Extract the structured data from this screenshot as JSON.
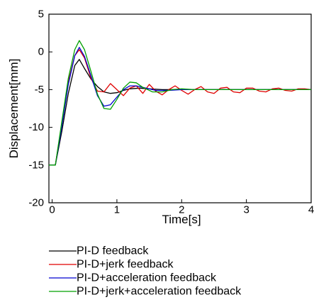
{
  "chart_data": {
    "type": "line",
    "title": "",
    "xlabel": "Time[s]",
    "ylabel": "Displacement[mm]",
    "xlim": [
      -0.05,
      4
    ],
    "ylim": [
      -20,
      5
    ],
    "xticks": [
      0,
      1,
      2,
      3,
      4
    ],
    "xtick_labels": [
      "0",
      "1",
      "2",
      "3",
      "4"
    ],
    "yticks": [
      -20,
      -15,
      -10,
      -5,
      0,
      5
    ],
    "ytick_labels": [
      "-20",
      "-15",
      "-10",
      "-5",
      "0",
      "5"
    ],
    "grid": false,
    "legend_position": "bottom",
    "series": [
      {
        "name": "PI-D feedback",
        "color": "#000000",
        "points": [
          [
            -0.05,
            -15
          ],
          [
            0.05,
            -15
          ],
          [
            0.15,
            -10.5
          ],
          [
            0.25,
            -5.5
          ],
          [
            0.35,
            -1.8
          ],
          [
            0.42,
            -1.0
          ],
          [
            0.5,
            -2.2
          ],
          [
            0.6,
            -3.6
          ],
          [
            0.7,
            -4.6
          ],
          [
            0.8,
            -5.3
          ],
          [
            0.9,
            -5.5
          ],
          [
            1.0,
            -5.4
          ],
          [
            1.1,
            -5.1
          ],
          [
            1.2,
            -4.9
          ],
          [
            1.35,
            -4.8
          ],
          [
            1.5,
            -4.9
          ],
          [
            1.7,
            -5.0
          ],
          [
            2.0,
            -5.0
          ],
          [
            4.0,
            -5.0
          ]
        ]
      },
      {
        "name": "PI-D+jerk feedback",
        "color": "#e00000",
        "points": [
          [
            -0.05,
            -15
          ],
          [
            0.05,
            -15
          ],
          [
            0.15,
            -9.5
          ],
          [
            0.25,
            -4.0
          ],
          [
            0.35,
            -0.5
          ],
          [
            0.42,
            0.3
          ],
          [
            0.5,
            -0.8
          ],
          [
            0.6,
            -3.5
          ],
          [
            0.7,
            -5.2
          ],
          [
            0.8,
            -5.3
          ],
          [
            0.9,
            -4.2
          ],
          [
            1.0,
            -5.0
          ],
          [
            1.1,
            -5.8
          ],
          [
            1.2,
            -4.8
          ],
          [
            1.3,
            -4.5
          ],
          [
            1.4,
            -5.5
          ],
          [
            1.5,
            -4.3
          ],
          [
            1.6,
            -5.2
          ],
          [
            1.7,
            -5.7
          ],
          [
            1.8,
            -5.0
          ],
          [
            1.9,
            -4.5
          ],
          [
            2.0,
            -5.1
          ],
          [
            2.1,
            -5.6
          ],
          [
            2.2,
            -5.0
          ],
          [
            2.3,
            -4.6
          ],
          [
            2.4,
            -5.3
          ],
          [
            2.5,
            -5.5
          ],
          [
            2.6,
            -4.8
          ],
          [
            2.7,
            -4.7
          ],
          [
            2.8,
            -5.3
          ],
          [
            2.9,
            -5.4
          ],
          [
            3.0,
            -4.8
          ],
          [
            3.1,
            -4.8
          ],
          [
            3.2,
            -5.2
          ],
          [
            3.3,
            -5.3
          ],
          [
            3.4,
            -4.9
          ],
          [
            3.5,
            -4.8
          ],
          [
            3.6,
            -5.1
          ],
          [
            3.7,
            -5.2
          ],
          [
            3.8,
            -4.9
          ],
          [
            3.9,
            -4.9
          ],
          [
            4.0,
            -5.0
          ]
        ]
      },
      {
        "name": "PI-D+acceleration feedback",
        "color": "#0000d0",
        "points": [
          [
            -0.05,
            -15
          ],
          [
            0.05,
            -15
          ],
          [
            0.15,
            -9.8
          ],
          [
            0.25,
            -4.3
          ],
          [
            0.35,
            -0.5
          ],
          [
            0.42,
            0.6
          ],
          [
            0.5,
            -0.6
          ],
          [
            0.6,
            -3.2
          ],
          [
            0.7,
            -5.8
          ],
          [
            0.8,
            -7.2
          ],
          [
            0.9,
            -7.0
          ],
          [
            1.0,
            -6.0
          ],
          [
            1.1,
            -5.0
          ],
          [
            1.2,
            -4.5
          ],
          [
            1.3,
            -4.5
          ],
          [
            1.45,
            -4.8
          ],
          [
            1.6,
            -5.1
          ],
          [
            1.8,
            -5.1
          ],
          [
            2.0,
            -5.0
          ],
          [
            4.0,
            -5.0
          ]
        ]
      },
      {
        "name": "PI-D+jerk+acceleration feedback",
        "color": "#00a000",
        "points": [
          [
            -0.05,
            -15
          ],
          [
            0.05,
            -15
          ],
          [
            0.15,
            -9.2
          ],
          [
            0.25,
            -3.5
          ],
          [
            0.35,
            0.3
          ],
          [
            0.42,
            1.5
          ],
          [
            0.5,
            0.3
          ],
          [
            0.6,
            -2.6
          ],
          [
            0.7,
            -5.6
          ],
          [
            0.8,
            -7.5
          ],
          [
            0.9,
            -7.6
          ],
          [
            1.0,
            -6.3
          ],
          [
            1.1,
            -4.8
          ],
          [
            1.2,
            -4.0
          ],
          [
            1.3,
            -4.1
          ],
          [
            1.4,
            -4.7
          ],
          [
            1.55,
            -5.3
          ],
          [
            1.7,
            -5.3
          ],
          [
            1.85,
            -5.0
          ],
          [
            2.0,
            -4.9
          ],
          [
            2.2,
            -5.0
          ],
          [
            4.0,
            -5.0
          ]
        ]
      }
    ]
  }
}
